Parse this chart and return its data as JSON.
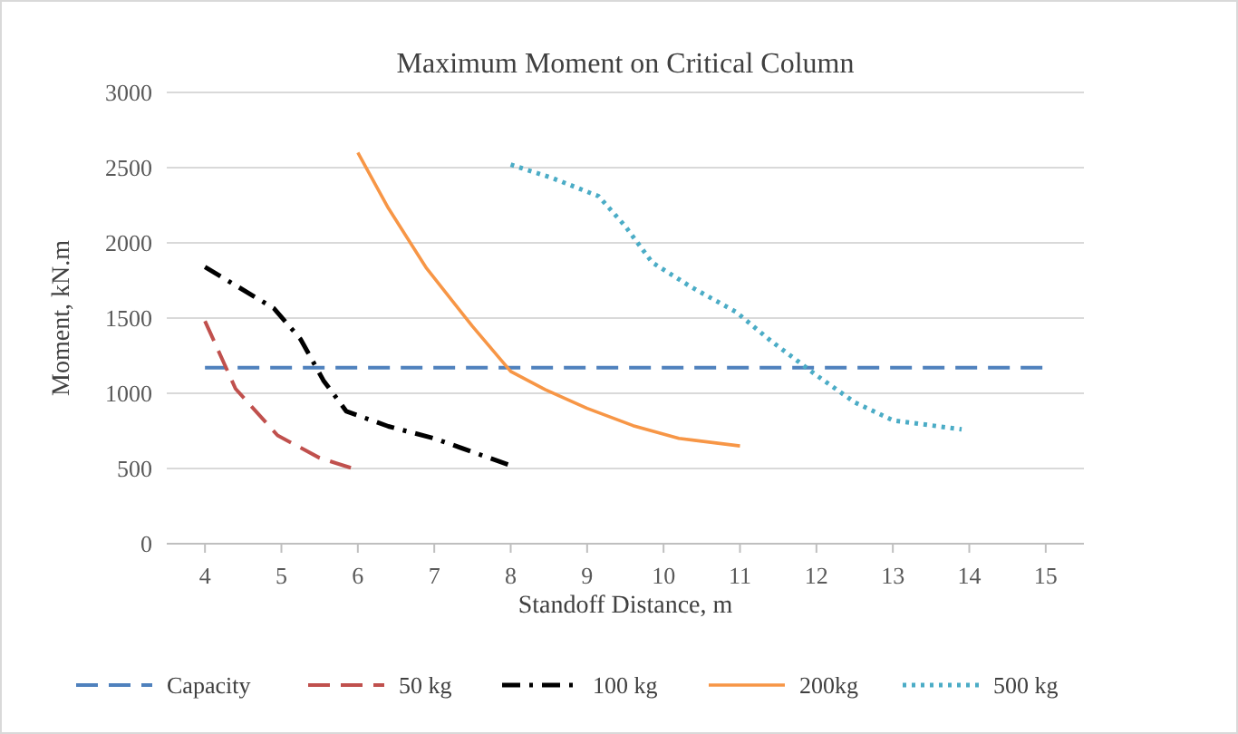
{
  "chart_data": {
    "type": "line",
    "title": "Maximum Moment on Critical Column",
    "xlabel": "Standoff Distance, m",
    "ylabel": "Moment, kN.m",
    "xlim": [
      3.5,
      15.5
    ],
    "xticks": [
      4,
      5,
      6,
      7,
      8,
      9,
      10,
      11,
      12,
      13,
      14,
      15
    ],
    "ylim": [
      0,
      3000
    ],
    "yticks": [
      0,
      500,
      1000,
      1500,
      2000,
      2500,
      3000
    ],
    "grid": "y",
    "legend": "bottom",
    "series": [
      {
        "name": "Capacity",
        "color": "#4f81bd",
        "line_style": "dashed",
        "x": [
          4,
          15
        ],
        "values": [
          1170,
          1170
        ]
      },
      {
        "name": "50 kg",
        "color": "#c0504d",
        "line_style": "dashed",
        "x": [
          4,
          4.4,
          4.95,
          5.5,
          6
        ],
        "values": [
          1480,
          1030,
          720,
          570,
          490
        ]
      },
      {
        "name": "100 kg",
        "color": "#000000",
        "line_style": "dashdot",
        "x": [
          4,
          4.9,
          5.25,
          5.55,
          5.85,
          6.4,
          7,
          8
        ],
        "values": [
          1840,
          1565,
          1360,
          1085,
          880,
          780,
          700,
          520
        ]
      },
      {
        "name": "200kg",
        "color": "#f79646",
        "line_style": "solid",
        "x": [
          6,
          6.4,
          6.9,
          7.5,
          8,
          8.45,
          9,
          9.6,
          10.2,
          11
        ],
        "values": [
          2600,
          2230,
          1830,
          1445,
          1145,
          1025,
          900,
          785,
          700,
          650
        ]
      },
      {
        "name": "500 kg",
        "color": "#4bacc6",
        "line_style": "dotted",
        "x": [
          8,
          8.55,
          9.15,
          9.5,
          9.85,
          10.35,
          10.95,
          11.4,
          12,
          12.5,
          13,
          13.9
        ],
        "values": [
          2520,
          2430,
          2310,
          2110,
          1870,
          1710,
          1540,
          1350,
          1120,
          940,
          820,
          760
        ]
      }
    ]
  }
}
